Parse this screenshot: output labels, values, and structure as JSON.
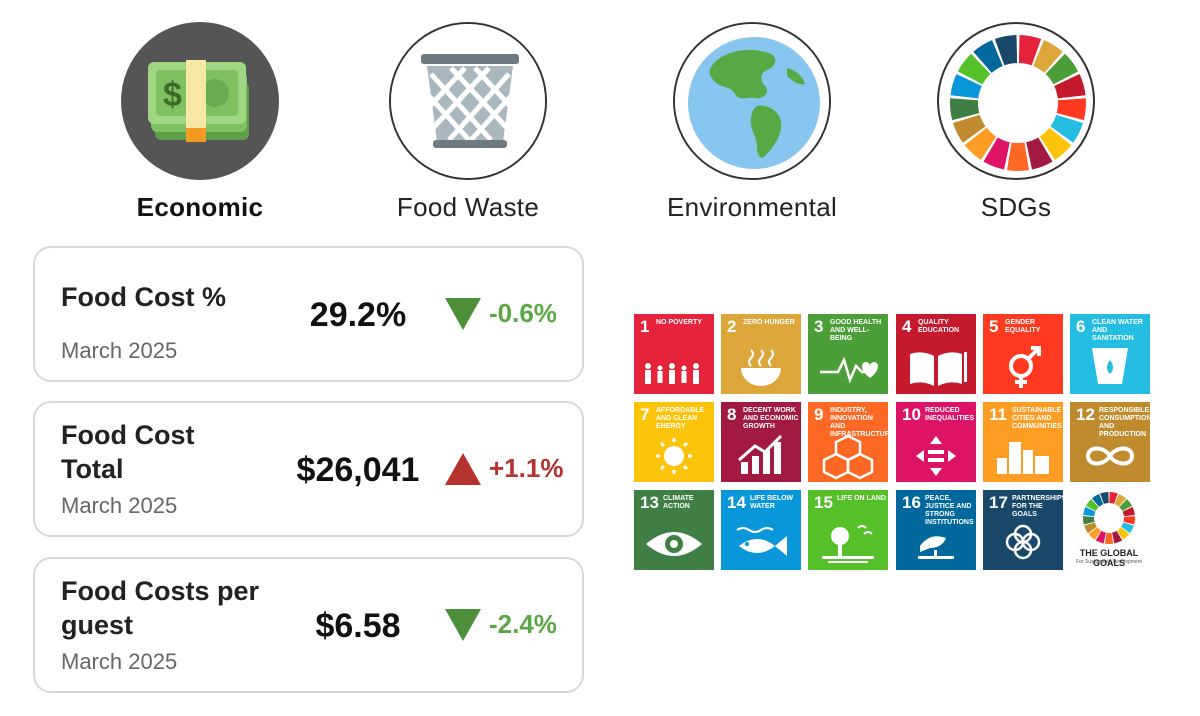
{
  "tabs": [
    {
      "label": "Economic",
      "active": true,
      "icon": "money-icon"
    },
    {
      "label": "Food Waste",
      "active": false,
      "icon": "waste-basket-icon"
    },
    {
      "label": "Environmental",
      "active": false,
      "icon": "globe-icon"
    },
    {
      "label": "SDGs",
      "active": false,
      "icon": "sdg-wheel-icon"
    }
  ],
  "cards": [
    {
      "title": "Food Cost %",
      "date": "March 2025",
      "value": "29.2%",
      "change": "-0.6%",
      "direction": "down"
    },
    {
      "title": "Food Cost Total",
      "date": "March 2025",
      "value": "$26,041",
      "change": "+1.1%",
      "direction": "up"
    },
    {
      "title": "Food Costs per guest",
      "date": "March 2025",
      "value": "$6.58",
      "change": "-2.4%",
      "direction": "down"
    }
  ],
  "colors": {
    "down": "#5aa845",
    "up": "#b5322f",
    "card_border": "#d8d8d8"
  },
  "sdgs": [
    {
      "number": "1",
      "name": "No Poverty",
      "color": "#e5243b"
    },
    {
      "number": "2",
      "name": "Zero Hunger",
      "color": "#dda63a"
    },
    {
      "number": "3",
      "name": "Good Health and Well-Being",
      "color": "#4c9f38"
    },
    {
      "number": "4",
      "name": "Quality Education",
      "color": "#c5192d"
    },
    {
      "number": "5",
      "name": "Gender Equality",
      "color": "#ff3a21"
    },
    {
      "number": "6",
      "name": "Clean Water and Sanitation",
      "color": "#26bde2"
    },
    {
      "number": "7",
      "name": "Affordable and Clean Energy",
      "color": "#fcc30b"
    },
    {
      "number": "8",
      "name": "Decent Work and Economic Growth",
      "color": "#a21942"
    },
    {
      "number": "9",
      "name": "Industry, Innovation and Infrastructure",
      "color": "#fd6925"
    },
    {
      "number": "10",
      "name": "Reduced Inequalities",
      "color": "#dd1367"
    },
    {
      "number": "11",
      "name": "Sustainable Cities and Communities",
      "color": "#fd9d24"
    },
    {
      "number": "12",
      "name": "Responsible Consumption and Production",
      "color": "#bf8b2e"
    },
    {
      "number": "13",
      "name": "Climate Action",
      "color": "#3f7e44"
    },
    {
      "number": "14",
      "name": "Life Below Water",
      "color": "#0a97d9"
    },
    {
      "number": "15",
      "name": "Life On Land",
      "color": "#56c02b"
    },
    {
      "number": "16",
      "name": "Peace, Justice and Strong Institutions",
      "color": "#00689d"
    },
    {
      "number": "17",
      "name": "Partnerships for the Goals",
      "color": "#19486a"
    }
  ],
  "global_goals": {
    "title": "THE GLOBAL GOALS",
    "subtitle": "For Sustainable Development"
  }
}
